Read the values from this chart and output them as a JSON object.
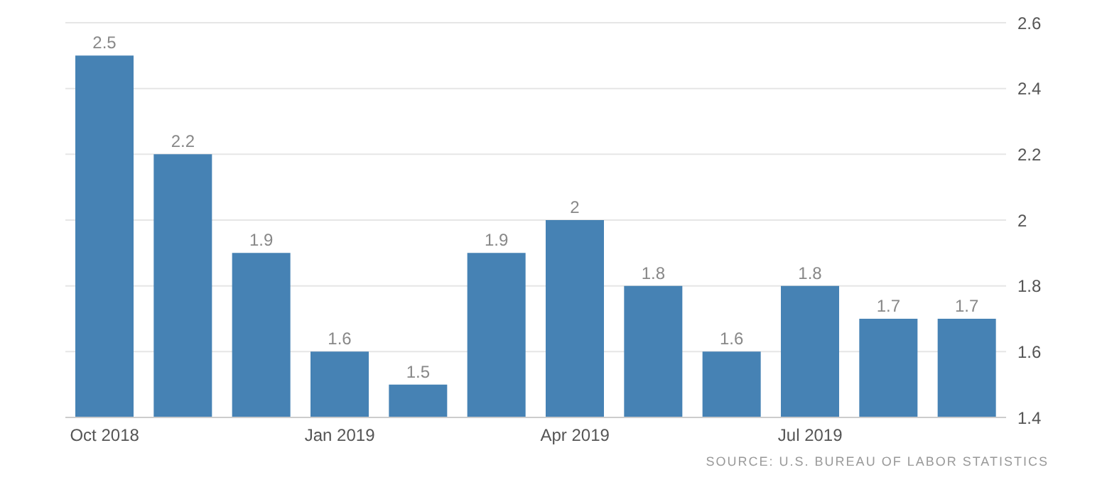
{
  "chart_data": {
    "type": "bar",
    "categories": [
      "Oct 2018",
      null,
      null,
      "Jan 2019",
      null,
      null,
      "Apr 2019",
      null,
      null,
      "Jul 2019",
      null,
      null
    ],
    "values": [
      2.5,
      2.2,
      1.9,
      1.6,
      1.5,
      1.9,
      2,
      1.8,
      1.6,
      1.8,
      1.7,
      1.7
    ],
    "color": "#4682b4",
    "ylim": [
      1.4,
      2.6
    ],
    "yticks": [
      1.4,
      1.6,
      1.8,
      2,
      2.2,
      2.4,
      2.6
    ],
    "grid": "y",
    "data_labels": true,
    "annotations": [
      "SOURCE: U.S. BUREAU OF LABOR STATISTICS"
    ]
  }
}
